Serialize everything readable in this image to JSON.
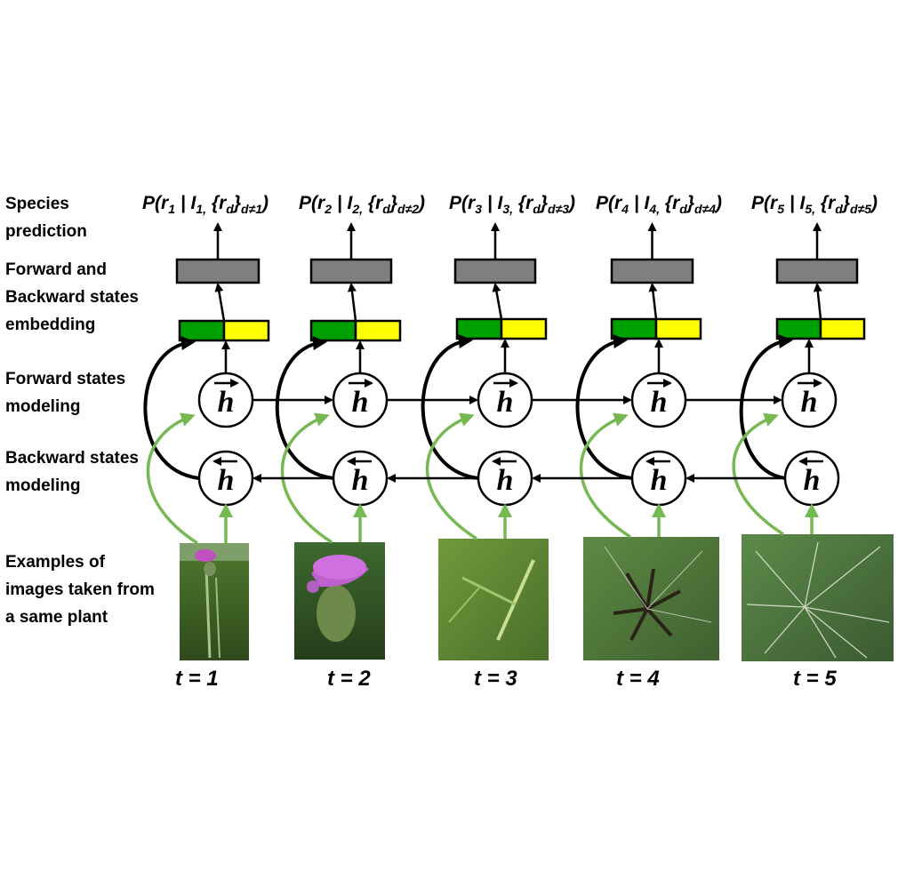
{
  "row_labels": {
    "species_prediction": "Species\nprediction",
    "embedding": "Forward and\nBackward states\nembedding",
    "forward": "Forward states\nmodeling",
    "backward": "Backward states\nmodeling",
    "examples": "Examples of\nimages taken from\na same plant"
  },
  "state_symbol": "h",
  "steps": [
    {
      "t_label": "t = 1",
      "r": "r",
      "r_sub": "1",
      "I": "I",
      "I_sub": "1,",
      "rd": "r",
      "rd_sub": "d",
      "cond": "d≠1"
    },
    {
      "t_label": "t = 2",
      "r": "r",
      "r_sub": "2",
      "I": "I",
      "I_sub": "2,",
      "rd": "r",
      "rd_sub": "d",
      "cond": "d≠2"
    },
    {
      "t_label": "t = 3",
      "r": "r",
      "r_sub": "3",
      "I": "I",
      "I_sub": "3,",
      "rd": "r",
      "rd_sub": "d",
      "cond": "d≠3"
    },
    {
      "t_label": "t = 4",
      "r": "r",
      "r_sub": "4",
      "I": "I",
      "I_sub": "4,",
      "rd": "r",
      "rd_sub": "d",
      "cond": "d≠4"
    },
    {
      "t_label": "t = 5",
      "r": "r",
      "r_sub": "5",
      "I": "I",
      "I_sub": "5,",
      "rd": "r",
      "rd_sub": "d",
      "cond": "d≠5"
    }
  ],
  "colors": {
    "forward_half": "#00a000",
    "backward_half": "#ffff00",
    "embedding_box": "#7f7f7f",
    "image_arrow": "#76b852",
    "state_arrow": "#000000"
  }
}
